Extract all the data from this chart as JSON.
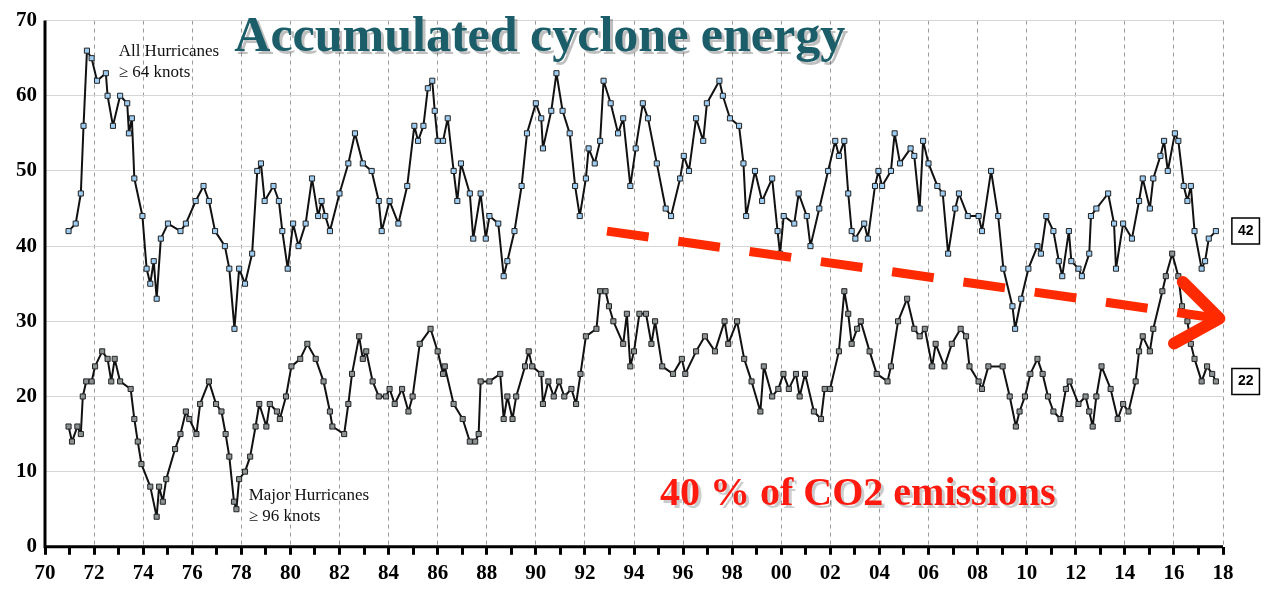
{
  "chart_data": {
    "type": "line",
    "title": "Accumulated cyclone energy",
    "xlim": [
      1970,
      2018
    ],
    "xticks": [
      {
        "value": 1970,
        "label": "70"
      },
      {
        "value": 1971,
        "label": null
      },
      {
        "value": 1972,
        "label": "72"
      },
      {
        "value": 1973,
        "label": null
      },
      {
        "value": 1974,
        "label": "74"
      },
      {
        "value": 1975,
        "label": null
      },
      {
        "value": 1976,
        "label": "76"
      },
      {
        "value": 1977,
        "label": null
      },
      {
        "value": 1978,
        "label": "78"
      },
      {
        "value": 1979,
        "label": null
      },
      {
        "value": 1980,
        "label": "80"
      },
      {
        "value": 1981,
        "label": null
      },
      {
        "value": 1982,
        "label": "82"
      },
      {
        "value": 1983,
        "label": null
      },
      {
        "value": 1984,
        "label": "84"
      },
      {
        "value": 1985,
        "label": null
      },
      {
        "value": 1986,
        "label": "86"
      },
      {
        "value": 1987,
        "label": null
      },
      {
        "value": 1988,
        "label": "88"
      },
      {
        "value": 1989,
        "label": null
      },
      {
        "value": 1990,
        "label": "90"
      },
      {
        "value": 1991,
        "label": null
      },
      {
        "value": 1992,
        "label": "92"
      },
      {
        "value": 1993,
        "label": null
      },
      {
        "value": 1994,
        "label": "94"
      },
      {
        "value": 1995,
        "label": null
      },
      {
        "value": 1996,
        "label": "96"
      },
      {
        "value": 1997,
        "label": null
      },
      {
        "value": 1998,
        "label": "98"
      },
      {
        "value": 1999,
        "label": null
      },
      {
        "value": 2000,
        "label": "00"
      },
      {
        "value": 2001,
        "label": null
      },
      {
        "value": 2002,
        "label": "02"
      },
      {
        "value": 2003,
        "label": null
      },
      {
        "value": 2004,
        "label": "04"
      },
      {
        "value": 2005,
        "label": null
      },
      {
        "value": 2006,
        "label": "06"
      },
      {
        "value": 2007,
        "label": null
      },
      {
        "value": 2008,
        "label": "08"
      },
      {
        "value": 2009,
        "label": null
      },
      {
        "value": 2010,
        "label": "10"
      },
      {
        "value": 2011,
        "label": null
      },
      {
        "value": 2012,
        "label": "12"
      },
      {
        "value": 2013,
        "label": null
      },
      {
        "value": 2014,
        "label": "14"
      },
      {
        "value": 2015,
        "label": null
      },
      {
        "value": 2016,
        "label": "16"
      },
      {
        "value": 2017,
        "label": null
      },
      {
        "value": 2018,
        "label": "18"
      }
    ],
    "ylim": [
      0,
      70
    ],
    "yticks": [
      0,
      10,
      20,
      30,
      40,
      50,
      60,
      70
    ],
    "grid": true,
    "legend": false,
    "marker": "square",
    "line_style": "solid",
    "series": [
      {
        "name": "All Hurricanes ≥ 64 knots",
        "color": "#9fcdf2",
        "x": [
          1970.96,
          1971.25,
          1971.46,
          1971.57,
          1971.71,
          1971.9,
          1972.12,
          1972.48,
          1972.55,
          1972.77,
          1973.06,
          1973.35,
          1973.42,
          1973.54,
          1973.64,
          1973.97,
          1974.14,
          1974.29,
          1974.43,
          1974.55,
          1974.72,
          1975.01,
          1975.52,
          1975.74,
          1976.14,
          1976.46,
          1976.68,
          1976.93,
          1977.33,
          1977.51,
          1977.72,
          1977.91,
          1978.15,
          1978.44,
          1978.65,
          1978.8,
          1978.95,
          1979.31,
          1979.53,
          1979.67,
          1979.89,
          1980.11,
          1980.33,
          1980.62,
          1980.88,
          1981.13,
          1981.27,
          1981.42,
          1981.61,
          1982.0,
          1982.36,
          1982.63,
          1982.95,
          1983.31,
          1983.6,
          1983.72,
          1984.04,
          1984.4,
          1984.76,
          1985.05,
          1985.2,
          1985.42,
          1985.6,
          1985.78,
          1985.88,
          1986.0,
          1986.22,
          1986.41,
          1986.65,
          1986.8,
          1986.95,
          1987.31,
          1987.45,
          1987.75,
          1987.96,
          1988.11,
          1988.47,
          1988.69,
          1988.84,
          1989.13,
          1989.42,
          1989.64,
          1990.0,
          1990.22,
          1990.29,
          1990.63,
          1990.84,
          1991.09,
          1991.38,
          1991.6,
          1991.79,
          1992.04,
          1992.15,
          1992.4,
          1992.62,
          1992.76,
          1993.05,
          1993.35,
          1993.56,
          1993.85,
          1994.07,
          1994.36,
          1994.57,
          1994.93,
          1995.29,
          1995.51,
          1995.88,
          1996.03,
          1996.24,
          1996.53,
          1996.82,
          1996.97,
          1997.48,
          1997.62,
          1997.91,
          1998.28,
          1998.46,
          1998.57,
          1998.93,
          1999.22,
          1999.63,
          1999.85,
          1999.95,
          2000.1,
          2000.53,
          2000.71,
          2001.04,
          2001.19,
          2001.55,
          2001.91,
          2002.2,
          2002.35,
          2002.57,
          2002.73,
          2002.87,
          2003.02,
          2003.38,
          2003.53,
          2003.82,
          2003.96,
          2004.11,
          2004.47,
          2004.62,
          2004.84,
          2005.27,
          2005.42,
          2005.64,
          2005.78,
          2006.0,
          2006.36,
          2006.58,
          2006.8,
          2007.09,
          2007.24,
          2007.6,
          2008.04,
          2008.18,
          2008.55,
          2008.84,
          2009.05,
          2009.42,
          2009.53,
          2009.78,
          2010.07,
          2010.44,
          2010.58,
          2010.8,
          2011.09,
          2011.31,
          2011.45,
          2011.72,
          2011.82,
          2012.11,
          2012.25,
          2012.55,
          2012.62,
          2012.84,
          2013.32,
          2013.56,
          2013.64,
          2013.93,
          2014.29,
          2014.58,
          2014.73,
          2015.02,
          2015.16,
          2015.45,
          2015.6,
          2015.75,
          2016.04,
          2016.18,
          2016.4,
          2016.55,
          2016.69,
          2016.84,
          2017.13,
          2017.27,
          2017.42,
          2017.71
        ],
        "values": [
          42,
          43,
          47,
          56,
          66,
          65,
          62,
          63,
          60,
          56,
          60,
          59,
          55,
          57,
          49,
          44,
          37,
          35,
          38,
          33,
          41,
          43,
          42,
          43,
          46,
          48,
          46,
          42,
          40,
          37,
          29,
          37,
          35,
          39,
          50,
          51,
          46,
          48,
          46,
          42,
          37,
          43,
          40,
          43,
          49,
          44,
          46,
          44,
          42,
          47,
          51,
          55,
          51,
          50,
          46,
          42,
          46,
          43,
          48,
          56,
          54,
          56,
          61,
          62,
          58,
          54,
          54,
          57,
          50,
          46,
          51,
          47,
          41,
          47,
          41,
          44,
          43,
          36,
          38,
          42,
          48,
          55,
          59,
          57,
          53,
          58,
          63,
          58,
          55,
          48,
          44,
          49,
          53,
          51,
          54,
          62,
          59,
          55,
          57,
          48,
          53,
          59,
          57,
          51,
          45,
          44,
          49,
          52,
          50,
          57,
          54,
          59,
          62,
          60,
          57,
          56,
          51,
          44,
          50,
          46,
          49,
          42,
          39,
          44,
          43,
          47,
          44,
          40,
          45,
          50,
          54,
          52,
          54,
          47,
          42,
          41,
          43,
          41,
          48,
          50,
          48,
          50,
          55,
          51,
          53,
          52,
          45,
          54,
          51,
          48,
          47,
          39,
          45,
          47,
          44,
          44,
          42,
          50,
          44,
          37,
          32,
          29,
          33,
          37,
          40,
          39,
          44,
          42,
          38,
          36,
          42,
          38,
          37,
          36,
          39,
          44,
          45,
          47,
          43,
          37,
          43,
          41,
          46,
          49,
          45,
          49,
          52,
          54,
          50,
          55,
          54,
          48,
          46,
          48,
          42,
          37,
          38,
          41,
          42
        ]
      },
      {
        "name": "Major Hurricanes ≥ 96 knots",
        "color": "#8c9294",
        "x": [
          1970.96,
          1971.1,
          1971.32,
          1971.46,
          1971.54,
          1971.68,
          1971.9,
          1972.04,
          1972.33,
          1972.55,
          1972.7,
          1972.84,
          1973.06,
          1973.49,
          1973.64,
          1973.78,
          1973.93,
          1974.29,
          1974.55,
          1974.65,
          1974.8,
          1974.94,
          1975.3,
          1975.52,
          1975.74,
          1975.88,
          1976.17,
          1976.32,
          1976.68,
          1976.97,
          1977.19,
          1977.36,
          1977.51,
          1977.7,
          1977.8,
          1977.91,
          1978.15,
          1978.36,
          1978.58,
          1978.73,
          1979.02,
          1979.16,
          1979.45,
          1979.57,
          1979.82,
          1980.04,
          1980.4,
          1980.69,
          1981.03,
          1981.35,
          1981.61,
          1981.71,
          1982.19,
          1982.36,
          1982.51,
          1982.8,
          1982.95,
          1983.09,
          1983.35,
          1983.6,
          1983.89,
          1984.04,
          1984.25,
          1984.55,
          1984.81,
          1984.98,
          1985.27,
          1985.71,
          1986.0,
          1986.22,
          1986.29,
          1986.65,
          1987.02,
          1987.31,
          1987.53,
          1987.67,
          1987.75,
          1988.11,
          1988.55,
          1988.69,
          1988.84,
          1989.05,
          1989.2,
          1989.56,
          1989.71,
          1989.85,
          1990.22,
          1990.29,
          1990.51,
          1990.73,
          1990.95,
          1991.16,
          1991.45,
          1991.64,
          1991.82,
          1992.04,
          1992.47,
          1992.62,
          1992.84,
          1992.98,
          1993.16,
          1993.56,
          1993.71,
          1993.85,
          1994.0,
          1994.22,
          1994.49,
          1994.71,
          1994.86,
          1995.15,
          1995.59,
          1995.95,
          1996.09,
          1996.53,
          1996.89,
          1997.3,
          1997.69,
          1997.84,
          1998.2,
          1998.49,
          1998.79,
          1999.15,
          1999.29,
          1999.63,
          1999.88,
          2000.09,
          2000.31,
          2000.6,
          2000.75,
          2000.97,
          2001.33,
          2001.62,
          2001.77,
          2001.99,
          2002.35,
          2002.57,
          2002.73,
          2002.87,
          2003.09,
          2003.24,
          2003.6,
          2003.89,
          2004.33,
          2004.47,
          2004.76,
          2005.13,
          2005.42,
          2005.64,
          2005.85,
          2006.15,
          2006.29,
          2006.65,
          2006.95,
          2007.31,
          2007.53,
          2007.67,
          2008.04,
          2008.18,
          2008.44,
          2009.02,
          2009.31,
          2009.56,
          2009.71,
          2009.93,
          2010.15,
          2010.44,
          2010.65,
          2010.87,
          2011.09,
          2011.38,
          2011.6,
          2011.75,
          2012.11,
          2012.4,
          2012.55,
          2012.69,
          2012.84,
          2013.05,
          2013.42,
          2013.71,
          2013.93,
          2014.15,
          2014.44,
          2014.58,
          2014.73,
          2015.02,
          2015.16,
          2015.53,
          2015.67,
          2015.93,
          2016.18,
          2016.33,
          2016.55,
          2016.69,
          2016.84,
          2017.13,
          2017.35,
          2017.56,
          2017.71
        ],
        "values": [
          16,
          14,
          16,
          15,
          20,
          22,
          22,
          24,
          26,
          25,
          22,
          25,
          22,
          21,
          17,
          14,
          11,
          8,
          4,
          8,
          6,
          9,
          13,
          15,
          18,
          17,
          15,
          19,
          22,
          19,
          18,
          15,
          12,
          6,
          5,
          9,
          10,
          12,
          16,
          19,
          16,
          19,
          18,
          17,
          20,
          24,
          25,
          27,
          25,
          22,
          18,
          16,
          15,
          19,
          23,
          28,
          25,
          26,
          22,
          20,
          20,
          21,
          19,
          21,
          18,
          20,
          27,
          29,
          26,
          23,
          24,
          19,
          17,
          14,
          14,
          15,
          22,
          22,
          23,
          17,
          20,
          17,
          20,
          24,
          26,
          24,
          23,
          19,
          22,
          20,
          22,
          20,
          21,
          19,
          23,
          28,
          29,
          34,
          34,
          32,
          30,
          27,
          31,
          24,
          26,
          31,
          31,
          27,
          30,
          24,
          23,
          25,
          23,
          26,
          28,
          26,
          30,
          27,
          30,
          25,
          22,
          18,
          24,
          20,
          21,
          23,
          21,
          23,
          20,
          23,
          18,
          17,
          21,
          21,
          26,
          34,
          31,
          27,
          29,
          30,
          26,
          23,
          22,
          24,
          30,
          33,
          29,
          28,
          29,
          24,
          27,
          24,
          27,
          29,
          28,
          24,
          22,
          21,
          24,
          24,
          20,
          16,
          18,
          20,
          23,
          25,
          23,
          20,
          18,
          17,
          21,
          22,
          19,
          20,
          18,
          16,
          20,
          24,
          21,
          17,
          19,
          18,
          22,
          26,
          28,
          26,
          29,
          34,
          36,
          39,
          36,
          32,
          30,
          27,
          25,
          22,
          24,
          23,
          22
        ]
      },
      {
        "color": "#ff2a00",
        "x": [
          1992.9,
          2018
        ],
        "values": [
          42,
          30.3
        ],
        "marker": "none",
        "line_style": "dashed"
      }
    ],
    "annotations": [
      "40 % of CO2 emissions",
      {
        "text": "42",
        "x": 2017.71,
        "y": 42
      },
      {
        "text": "22",
        "x": 2017.71,
        "y": 22
      }
    ]
  }
}
